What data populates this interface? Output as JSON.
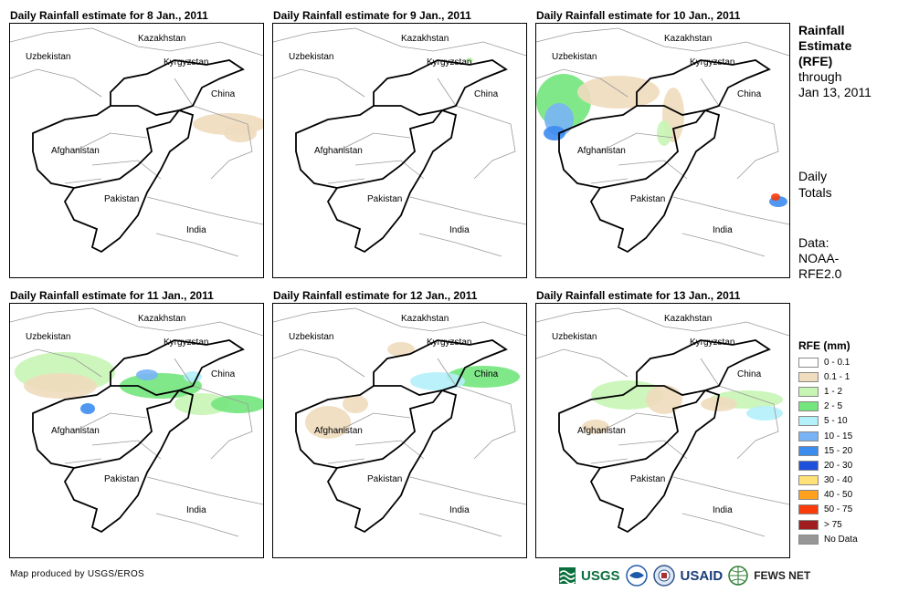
{
  "panels": [
    {
      "title": "Daily Rainfall estimate for 8 Jan., 2011"
    },
    {
      "title": "Daily Rainfall estimate for 9 Jan., 2011"
    },
    {
      "title": "Daily Rainfall estimate for 10 Jan., 2011"
    },
    {
      "title": "Daily Rainfall estimate for 11 Jan., 2011"
    },
    {
      "title": "Daily Rainfall estimate for 12 Jan., 2011"
    },
    {
      "title": "Daily Rainfall estimate for 13 Jan., 2011"
    }
  ],
  "labels": {
    "kazakhstan": "Kazakhstan",
    "uzbekistan": "Uzbekistan",
    "kyrgyzstan": "Kyrgyzstan",
    "china": "China",
    "afghanistan": "Afghanistan",
    "pakistan": "Pakistan",
    "india": "India"
  },
  "side": {
    "title_1": "Rainfall",
    "title_2": "Estimate",
    "title_3": "(RFE)",
    "through_1": "through",
    "through_2": "Jan 13, 2011",
    "daily_1": "Daily",
    "daily_2": "Totals",
    "data_1": "Data:",
    "data_2": "NOAA-",
    "data_3": "RFE2.0"
  },
  "legend": {
    "title": "RFE (mm)",
    "items": [
      {
        "label": "0 - 0.1",
        "color": "#ffffff"
      },
      {
        "label": "0.1 - 1",
        "color": "#f0dcbe"
      },
      {
        "label": "1 - 2",
        "color": "#c6f5b4"
      },
      {
        "label": "2 - 5",
        "color": "#73e67d"
      },
      {
        "label": "5 - 10",
        "color": "#b4f0fa"
      },
      {
        "label": "10 - 15",
        "color": "#78b4f5"
      },
      {
        "label": "15 - 20",
        "color": "#3c8cf0"
      },
      {
        "label": "20 - 30",
        "color": "#1e50dc"
      },
      {
        "label": "30 - 40",
        "color": "#ffe178"
      },
      {
        "label": "40 - 50",
        "color": "#ffa01e"
      },
      {
        "label": "50 - 75",
        "color": "#fa3c0a"
      },
      {
        "label": "> 75",
        "color": "#a01e1e"
      },
      {
        "label": "No Data",
        "color": "#969696"
      }
    ]
  },
  "credit": "Map produced by USGS/EROS",
  "logos": {
    "usgs": "USGS",
    "usaid": "USAID",
    "fews": "FEWS NET"
  }
}
